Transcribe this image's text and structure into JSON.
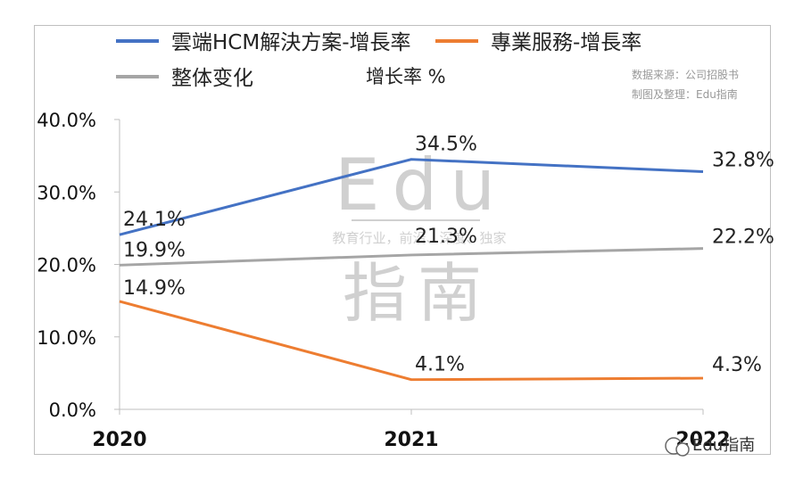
{
  "chart_data": {
    "type": "line",
    "categories": [
      "2020",
      "2021",
      "2022"
    ],
    "series": [
      {
        "name": "雲端HCM解決方案-增長率",
        "values": [
          24.1,
          34.5,
          32.8
        ],
        "labels": [
          "24.1%",
          "34.5%",
          "32.8%"
        ],
        "color": "#4472c4"
      },
      {
        "name": "專業服務-增長率",
        "values": [
          14.9,
          4.1,
          4.3
        ],
        "labels": [
          "14.9%",
          "4.1%",
          "4.3%"
        ],
        "color": "#ed7d31"
      },
      {
        "name": "整体变化",
        "values": [
          19.9,
          21.3,
          22.2
        ],
        "labels": [
          "19.9%",
          "21.3%",
          "22.2%"
        ],
        "color": "#a5a5a5"
      }
    ],
    "ylabel": "增长率 %",
    "ylim": [
      0,
      40
    ],
    "yticks": [
      "0.0%",
      "10.0%",
      "20.0%",
      "30.0%",
      "40.0%"
    ],
    "grid": false,
    "legend": "top-left"
  },
  "source": {
    "line1": "数据来源：公司招股书",
    "line2": "制图及整理：Edu指南"
  },
  "watermark": {
    "big": "Edu",
    "tagline": "教育行业，前沿、深度、独家",
    "chars": "指南",
    "brand": "Edu指南"
  }
}
